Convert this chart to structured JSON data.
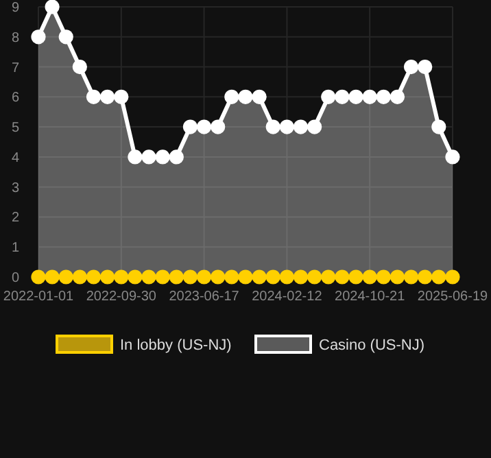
{
  "chart_data": {
    "type": "area",
    "categories": [
      "2022-01-01",
      null,
      null,
      null,
      null,
      null,
      "2022-09-30",
      null,
      null,
      null,
      null,
      null,
      "2023-06-17",
      null,
      null,
      null,
      null,
      null,
      "2024-02-12",
      null,
      null,
      null,
      null,
      null,
      "2024-10-21",
      null,
      null,
      null,
      null,
      null,
      "2025-06-19"
    ],
    "series": [
      {
        "name": "In lobby (US-NJ)",
        "type": "line",
        "color": "#ffd000",
        "values": [
          0,
          0,
          0,
          0,
          0,
          0,
          0,
          0,
          0,
          0,
          0,
          0,
          0,
          0,
          0,
          0,
          0,
          0,
          0,
          0,
          0,
          0,
          0,
          0,
          0,
          0,
          0,
          0,
          0,
          0,
          0
        ]
      },
      {
        "name": "Casino (US-NJ)",
        "color": "#ffffff",
        "values": [
          8,
          9,
          8,
          7,
          6,
          6,
          6,
          4,
          4,
          4,
          4,
          5,
          5,
          5,
          6,
          6,
          6,
          5,
          5,
          5,
          5,
          6,
          6,
          6,
          6,
          6,
          6,
          7,
          7,
          5,
          4
        ]
      }
    ],
    "ylim": [
      0,
      9
    ],
    "yticks": [
      0,
      1,
      2,
      3,
      4,
      5,
      6,
      7,
      8,
      9
    ],
    "grid": true,
    "legend": "bottom",
    "marker": "circle"
  }
}
